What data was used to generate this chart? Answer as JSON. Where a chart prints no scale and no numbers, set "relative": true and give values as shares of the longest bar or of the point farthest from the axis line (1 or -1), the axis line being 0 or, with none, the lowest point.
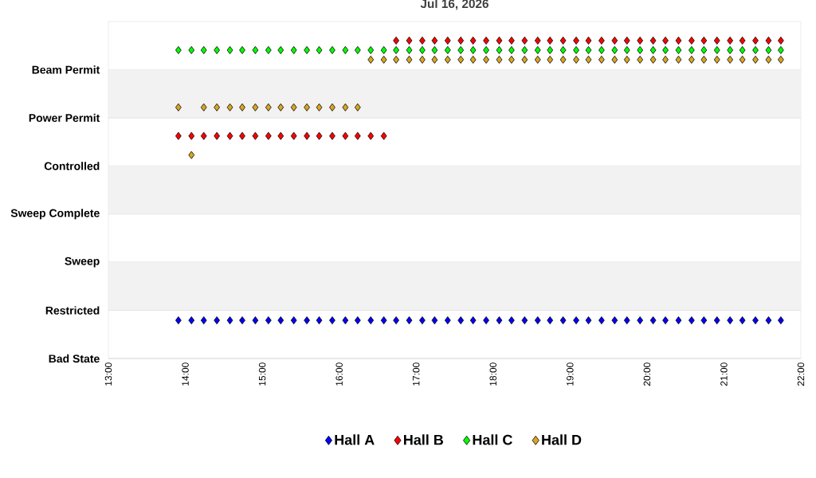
{
  "chart_data": {
    "type": "scatter",
    "title": "Jul 16, 2026",
    "relative": true,
    "x": [
      13.91,
      14.08,
      14.24,
      14.41,
      14.58,
      14.74,
      14.91,
      15.08,
      15.24,
      15.41,
      15.58,
      15.74,
      15.91,
      16.08,
      16.24,
      16.41,
      16.58,
      16.74,
      16.91,
      17.08,
      17.24,
      17.41,
      17.58,
      17.74,
      17.91,
      18.08,
      18.24,
      18.41,
      18.58,
      18.74,
      18.91,
      19.08,
      19.24,
      19.41,
      19.58,
      19.74,
      19.91,
      20.08,
      20.24,
      20.41,
      20.58,
      20.74,
      20.91,
      21.08,
      21.24,
      21.41,
      21.58,
      21.74
    ],
    "y_categories": [
      "Beam Permit",
      "Power Permit",
      "Controlled",
      "Sweep Complete",
      "Sweep",
      "Restricted",
      "Bad State"
    ],
    "series": [
      {
        "name": "Hall A",
        "color": "#0000ff",
        "values": [
          0.12,
          0.12,
          0.12,
          0.12,
          0.12,
          0.12,
          0.12,
          0.12,
          0.12,
          0.12,
          0.12,
          0.12,
          0.12,
          0.12,
          0.12,
          0.12,
          0.12,
          0.12,
          0.12,
          0.12,
          0.12,
          0.12,
          0.12,
          0.12,
          0.12,
          0.12,
          0.12,
          0.12,
          0.12,
          0.12,
          0.12,
          0.12,
          0.12,
          0.12,
          0.12,
          0.12,
          0.12,
          0.12,
          0.12,
          0.12,
          0.12,
          0.12,
          0.12,
          0.12,
          0.12,
          0.12,
          0.12,
          0.12
        ]
      },
      {
        "name": "Hall B",
        "color": "#ff0000",
        "values": [
          0.7,
          0.7,
          0.7,
          0.7,
          0.7,
          0.7,
          0.7,
          0.7,
          0.7,
          0.7,
          0.7,
          0.7,
          0.7,
          0.7,
          0.7,
          0.7,
          0.7,
          1,
          1,
          1,
          1,
          1,
          1,
          1,
          1,
          1,
          1,
          1,
          1,
          1,
          1,
          1,
          1,
          1,
          1,
          1,
          1,
          1,
          1,
          1,
          1,
          1,
          1,
          1,
          1,
          1,
          1,
          1
        ]
      },
      {
        "name": "Hall C",
        "color": "#00ff00",
        "values": [
          0.97,
          0.97,
          0.97,
          0.97,
          0.97,
          0.97,
          0.97,
          0.97,
          0.97,
          0.97,
          0.97,
          0.97,
          0.97,
          0.97,
          0.97,
          0.97,
          0.97,
          0.97,
          0.97,
          0.97,
          0.97,
          0.97,
          0.97,
          0.97,
          0.97,
          0.97,
          0.97,
          0.97,
          0.97,
          0.97,
          0.97,
          0.97,
          0.97,
          0.97,
          0.97,
          0.97,
          0.97,
          0.97,
          0.97,
          0.97,
          0.97,
          0.97,
          0.97,
          0.97,
          0.97,
          0.97,
          0.97,
          0.97
        ]
      },
      {
        "name": "Hall D",
        "color": "#daa520",
        "values": [
          0.79,
          0.64,
          0.79,
          0.79,
          0.79,
          0.79,
          0.79,
          0.79,
          0.79,
          0.79,
          0.79,
          0.79,
          0.79,
          0.79,
          0.79,
          0.94,
          0.94,
          0.94,
          0.94,
          0.94,
          0.94,
          0.94,
          0.94,
          0.94,
          0.94,
          0.94,
          0.94,
          0.94,
          0.94,
          0.94,
          0.94,
          0.94,
          0.94,
          0.94,
          0.94,
          0.94,
          0.94,
          0.94,
          0.94,
          0.94,
          0.94,
          0.94,
          0.94,
          0.94,
          0.94,
          0.94,
          0.94,
          0.94
        ]
      }
    ],
    "xlim": [
      13,
      22
    ],
    "xticks": [
      {
        "value": 13,
        "label": "13:00"
      },
      {
        "value": 14,
        "label": "14:00"
      },
      {
        "value": 15,
        "label": "15:00"
      },
      {
        "value": 16,
        "label": "16:00"
      },
      {
        "value": 17,
        "label": "17:00"
      },
      {
        "value": 18,
        "label": "18:00"
      },
      {
        "value": 19,
        "label": "19:00"
      },
      {
        "value": 20,
        "label": "20:00"
      },
      {
        "value": 21,
        "label": "21:00"
      },
      {
        "value": 22,
        "label": "22:00"
      }
    ],
    "bands": [
      {
        "axis": "y",
        "from": 0.152,
        "to": 0.303,
        "color": "#f2f2f2"
      },
      {
        "axis": "y",
        "from": 0.455,
        "to": 0.606,
        "color": "#f2f2f2"
      },
      {
        "axis": "y",
        "from": 0.758,
        "to": 0.909,
        "color": "#f2f2f2"
      }
    ],
    "grid": "y",
    "legend": "bottom",
    "marker": "diamond"
  }
}
